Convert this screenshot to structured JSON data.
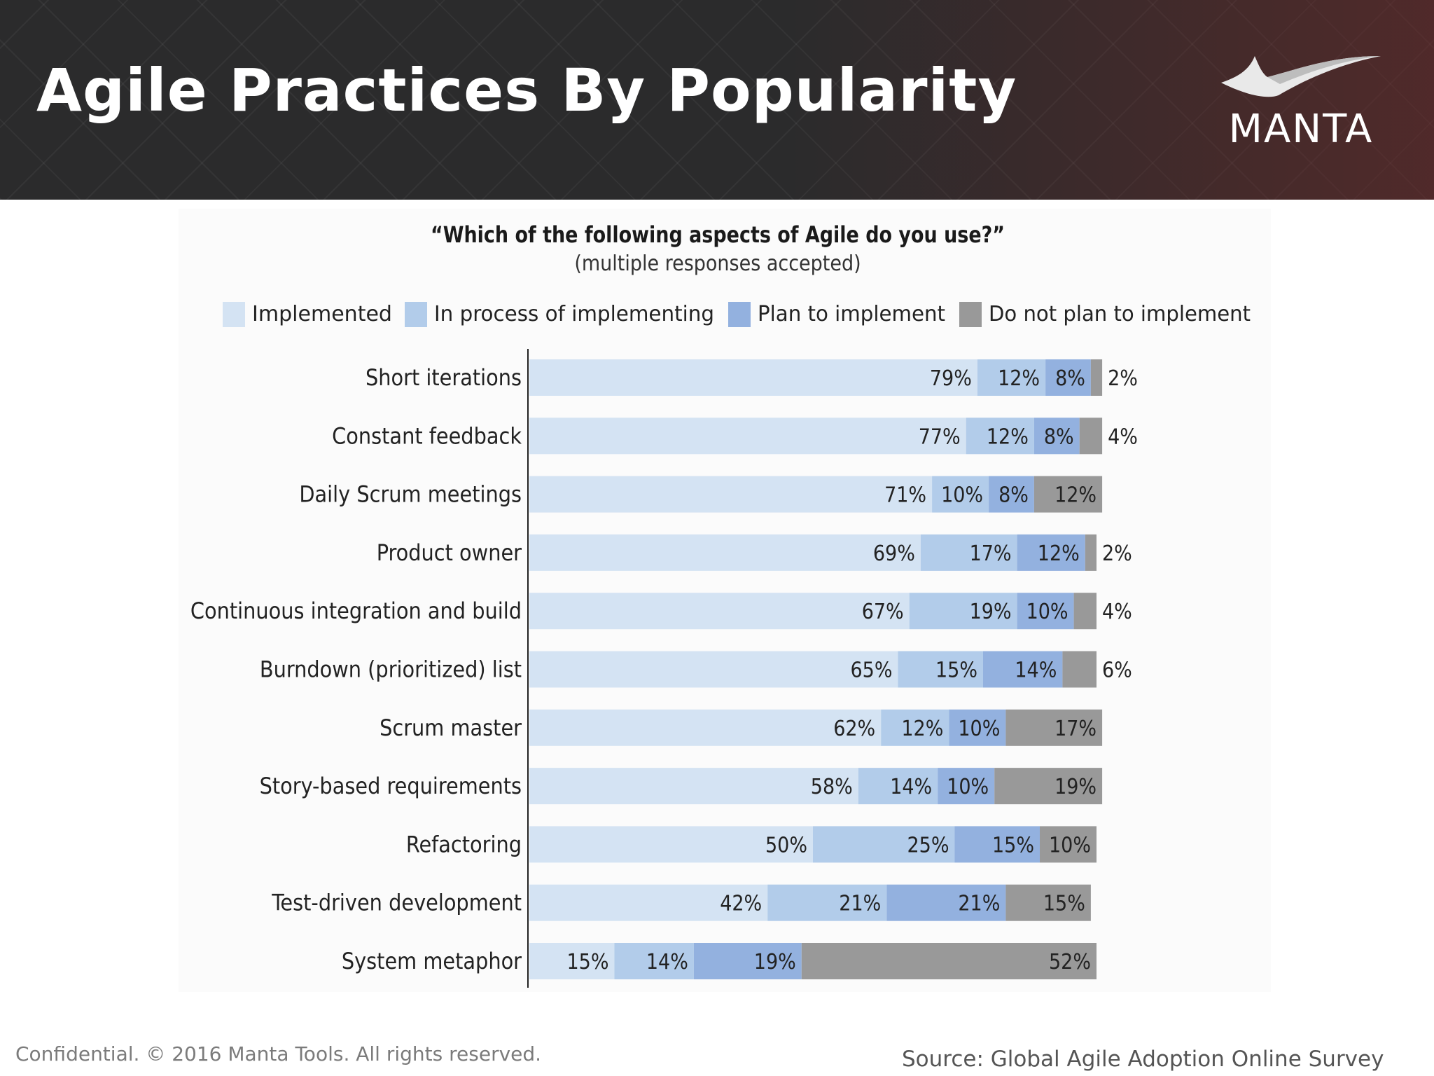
{
  "header": {
    "title": "Agile Practices By Popularity",
    "logo_text": "MANTA"
  },
  "footer": {
    "confidential": "Confidential. © 2016 Manta Tools. All rights reserved.",
    "source": "Source: Global Agile Adoption Online Survey"
  },
  "colors": {
    "header_bg": "#2b2b2c",
    "implemented": "#d4e3f3",
    "in_process": "#b2ccea",
    "plan": "#93b1df",
    "do_not_plan": "#999999"
  },
  "chart_data": {
    "type": "bar",
    "orientation": "horizontal",
    "stacked": true,
    "title": "“Which of the following aspects of Agile do you use?”",
    "subtitle": "(multiple responses accepted)",
    "xlabel": "",
    "ylabel": "",
    "xlim": [
      0,
      100
    ],
    "grid": false,
    "legend": "top",
    "categories": [
      "Short iterations",
      "Constant feedback",
      "Daily Scrum meetings",
      "Product owner",
      "Continuous integration and build",
      "Burndown (prioritized) list",
      "Scrum master",
      "Story-based requirements",
      "Refactoring",
      "Test-driven development",
      "System metaphor"
    ],
    "series": [
      {
        "name": "Implemented",
        "color": "#d4e3f3",
        "values": [
          79,
          77,
          71,
          69,
          67,
          65,
          62,
          58,
          50,
          42,
          15
        ]
      },
      {
        "name": "In process of implementing",
        "color": "#b2ccea",
        "values": [
          12,
          12,
          10,
          17,
          19,
          15,
          12,
          14,
          25,
          21,
          14
        ]
      },
      {
        "name": "Plan to implement",
        "color": "#93b1df",
        "values": [
          8,
          8,
          8,
          12,
          10,
          14,
          10,
          10,
          15,
          21,
          19
        ]
      },
      {
        "name": "Do not plan to implement",
        "color": "#999999",
        "values": [
          2,
          4,
          12,
          2,
          4,
          6,
          17,
          19,
          10,
          15,
          52
        ]
      }
    ],
    "data_labels": [
      [
        "79%",
        "12%",
        "8%",
        "2%"
      ],
      [
        "77%",
        "12%",
        "8%",
        "4%"
      ],
      [
        "71%",
        "10%",
        "8%",
        "12%"
      ],
      [
        "69%",
        "17%",
        "12%",
        "2%"
      ],
      [
        "67%",
        "19%",
        "10%",
        "4%"
      ],
      [
        "65%",
        "15%",
        "14%",
        "6%"
      ],
      [
        "62%",
        "12%",
        "10%",
        "17%"
      ],
      [
        "58%",
        "14%",
        "10%",
        "19%"
      ],
      [
        "50%",
        "25%",
        "15%",
        "10%"
      ],
      [
        "42%",
        "21%",
        "21%",
        "15%"
      ],
      [
        "15%",
        "14%",
        "19%",
        "52%"
      ]
    ]
  }
}
